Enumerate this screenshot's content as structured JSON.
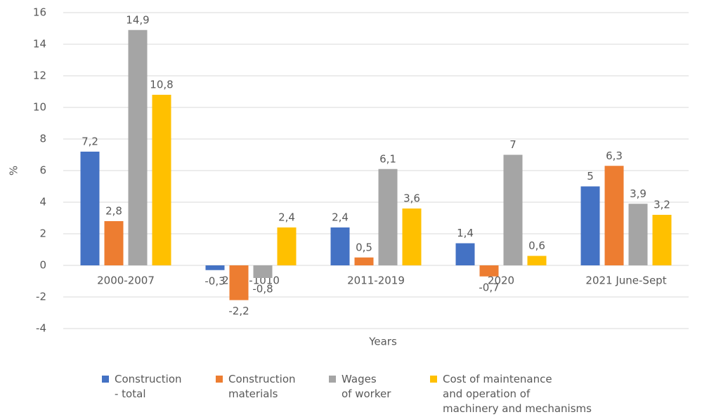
{
  "chart_data": {
    "type": "bar",
    "y_label": "%",
    "x_label": "Years",
    "categories": [
      "2000-2007",
      "2008-1010",
      "2011-2019",
      "2020",
      "2021 June-Sept"
    ],
    "series": [
      {
        "name": "Construction\n- total",
        "color": "#4472c4",
        "values": [
          7.2,
          -0.3,
          2.4,
          1.4,
          5
        ],
        "value_labels": [
          "7,2",
          "-0,3",
          "2,4",
          "1,4",
          "5"
        ]
      },
      {
        "name": "Construction\nmaterials",
        "color": "#ed7d31",
        "values": [
          2.8,
          -2.2,
          0.5,
          -0.7,
          6.3
        ],
        "value_labels": [
          "2,8",
          "-2,2",
          "0,5",
          "-0,7",
          "6,3"
        ]
      },
      {
        "name": "Wages\nof worker",
        "color": "#a5a5a5",
        "values": [
          14.9,
          -0.8,
          6.1,
          7,
          3.9
        ],
        "value_labels": [
          "14,9",
          "-0,8",
          "6,1",
          "7",
          "3,9"
        ]
      },
      {
        "name": "Cost of maintenance\nand operation of\nmachinery and mechanisms",
        "color": "#ffc000",
        "values": [
          10.8,
          2.4,
          3.6,
          0.6,
          3.2
        ],
        "value_labels": [
          "10,8",
          "2,4",
          "3,6",
          "0,6",
          "3,2"
        ]
      }
    ],
    "ylim": [
      -4,
      16
    ],
    "yticks": [
      -4,
      -2,
      0,
      2,
      4,
      6,
      8,
      10,
      12,
      14,
      16
    ],
    "grid": true,
    "legend": "bottom"
  }
}
